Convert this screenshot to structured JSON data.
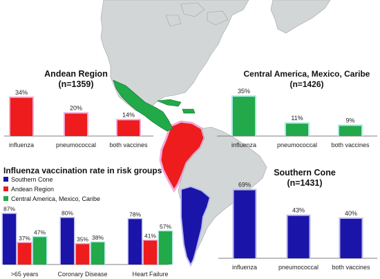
{
  "colors": {
    "southern": "#1a15a8",
    "andean": "#ee1c1c",
    "central": "#22a94a",
    "andean_glow": "#f3a9d9",
    "central_glow": "#a8e8e0",
    "southern_glow": "#bcbcf0",
    "land": "#d3d6d6",
    "land_stroke": "#9da3a3"
  },
  "chart_data": [
    {
      "id": "andean",
      "type": "bar",
      "title": "Andean Region",
      "subtitle": "(n=1359)",
      "categories": [
        "influenza",
        "pneumococcal",
        "both vaccines"
      ],
      "values": [
        34,
        20,
        14
      ],
      "value_labels": [
        "34%",
        "20%",
        "14%"
      ],
      "ylim": [
        0,
        40
      ],
      "grid": false,
      "legend": "none"
    },
    {
      "id": "central",
      "type": "bar",
      "title": "Central America, Mexico, Caribe",
      "subtitle": "(n=1426)",
      "categories": [
        "influenza",
        "pneumococcal",
        "both vaccines"
      ],
      "values": [
        35,
        11,
        9
      ],
      "value_labels": [
        "35%",
        "11%",
        "9%"
      ],
      "ylim": [
        0,
        40
      ],
      "grid": false,
      "legend": "none"
    },
    {
      "id": "southern",
      "type": "bar",
      "title": "Southern Cone",
      "subtitle": "(n=1431)",
      "categories": [
        "influenza",
        "pneumococcal",
        "both vaccines"
      ],
      "values": [
        69,
        43,
        40
      ],
      "value_labels": [
        "69%",
        "43%",
        "40%"
      ],
      "ylim": [
        0,
        75
      ],
      "grid": false,
      "legend": "none"
    },
    {
      "id": "risk",
      "type": "bar",
      "title": "Influenza  vaccination rate in risk groups",
      "categories": [
        ">65 years",
        "Coronary Disease",
        "Heart Failure"
      ],
      "series": [
        {
          "name": "Southern Cone",
          "values": [
            87,
            80,
            78
          ],
          "value_labels": [
            "87%",
            "80%",
            "78%"
          ]
        },
        {
          "name": "Andean Region",
          "values": [
            37,
            35,
            41
          ],
          "value_labels": [
            "37%",
            "35%",
            "41%"
          ]
        },
        {
          "name": "Central America, Mexico, Caribe",
          "values": [
            47,
            38,
            57
          ],
          "value_labels": [
            "47%",
            "38%",
            "57%"
          ]
        }
      ],
      "ylim": [
        0,
        95
      ],
      "grid": false,
      "legend": "top-left"
    }
  ]
}
